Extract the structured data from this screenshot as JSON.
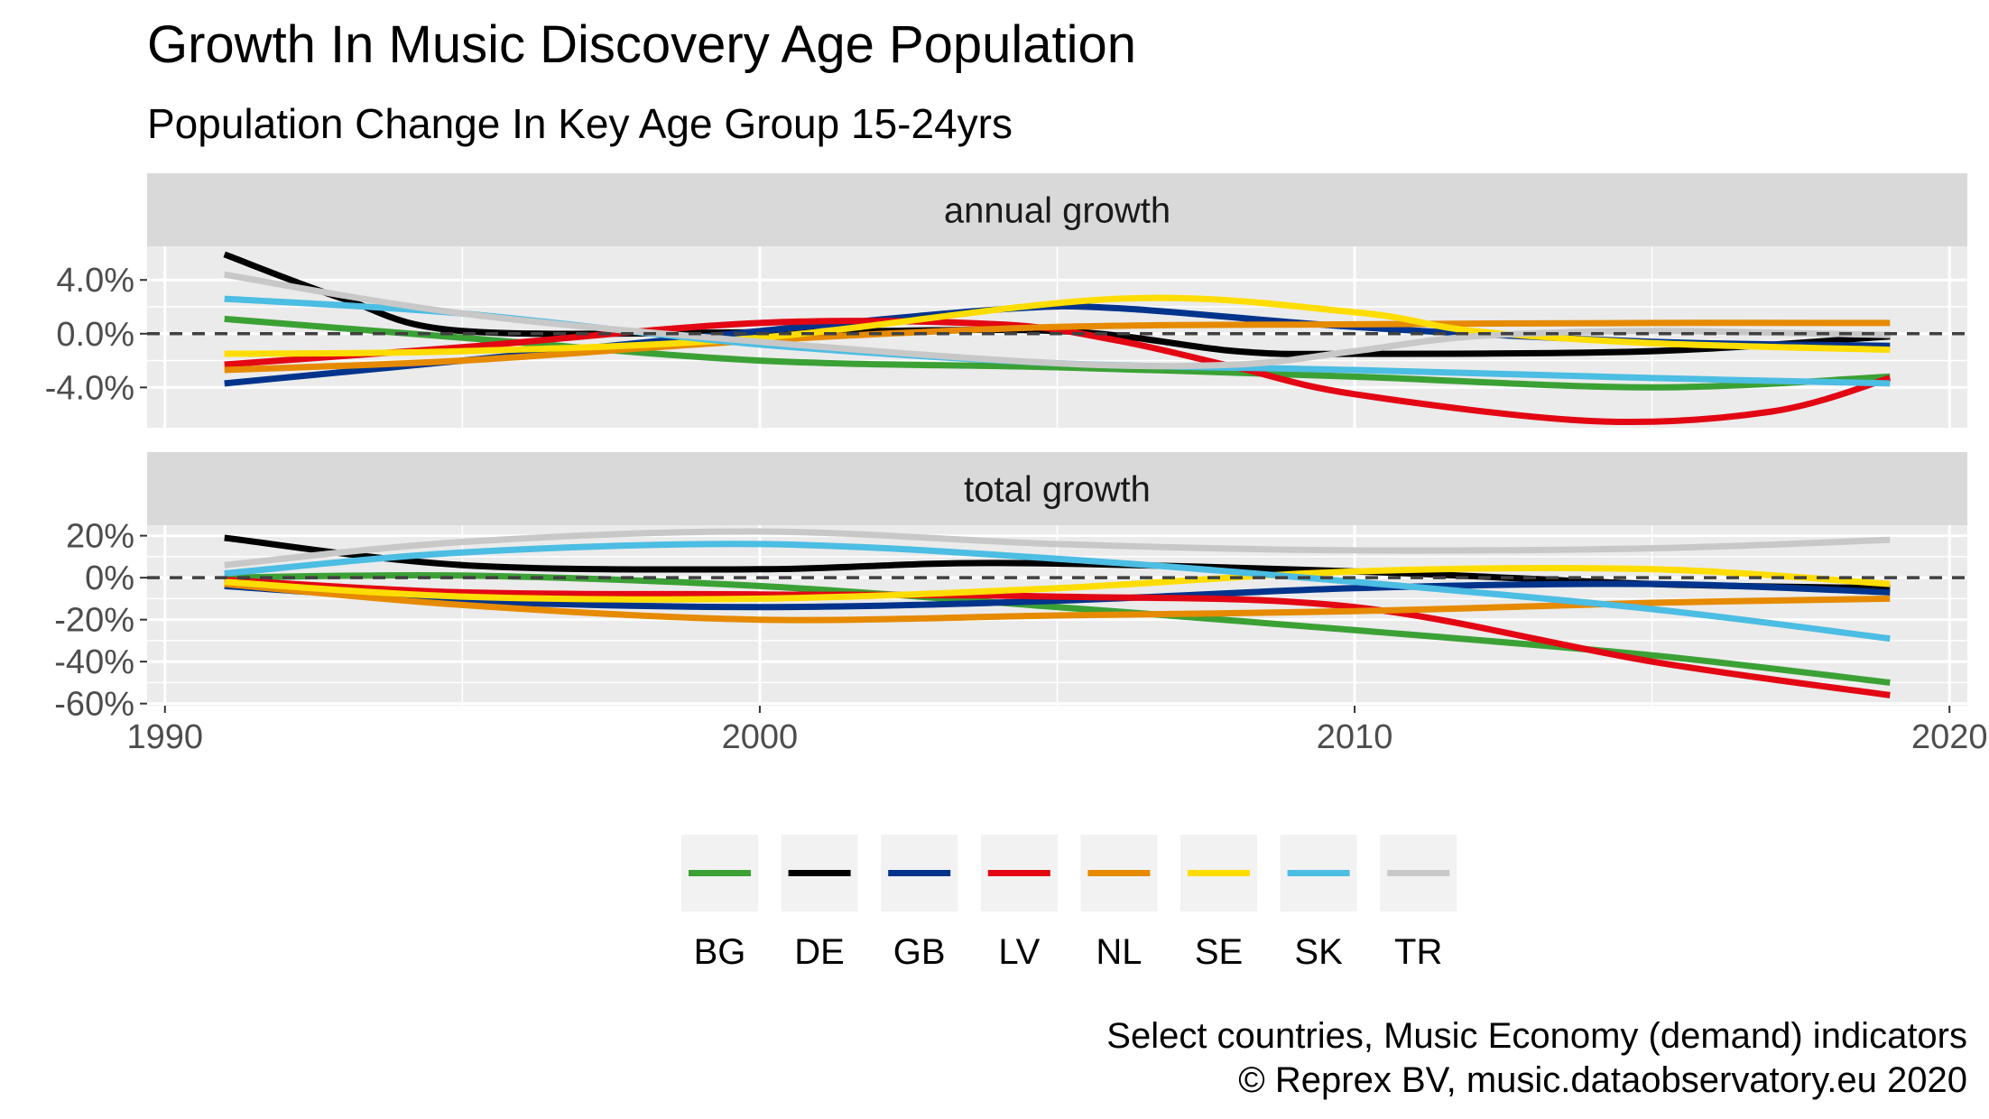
{
  "chart_data": {
    "type": "line",
    "title": "Growth In Music Discovery Age Population",
    "subtitle": "Population Change In Key Age Group 15-24yrs",
    "caption": [
      "Select countries, Music Economy (demand) indicators",
      "©  Reprex BV, music.dataobservatory.eu 2020"
    ],
    "x_ticks": [
      1990,
      2000,
      2010,
      2020
    ],
    "xlim": [
      1989.7,
      2020.3
    ],
    "legend_position": "bottom",
    "grid": true,
    "reference_line": 0,
    "panels": [
      {
        "label": "annual growth",
        "ylim": [
          -7,
          6.5
        ],
        "y_ticks": [
          4,
          0,
          -4
        ],
        "y_tick_labels": [
          "4.0%",
          "0.0%",
          "-4.0%"
        ],
        "series": [
          {
            "name": "BG",
            "color": "#3ba135",
            "x": [
              1991,
              1995,
              2000,
              2005,
              2010,
              2015,
              2019
            ],
            "values": [
              1.1,
              -0.3,
              -2.0,
              -2.5,
              -3.2,
              -4.0,
              -3.2
            ]
          },
          {
            "name": "DE",
            "color": "#000000",
            "x": [
              1991,
              1993,
              1995,
              2000,
              2005,
              2008,
              2010,
              2015,
              2019
            ],
            "values": [
              5.9,
              2.6,
              0.2,
              0.1,
              0.2,
              -1.3,
              -1.5,
              -1.3,
              -0.2
            ]
          },
          {
            "name": "GB",
            "color": "#00348c",
            "x": [
              1991,
              1995,
              2000,
              2004,
              2006,
              2010,
              2015,
              2019
            ],
            "values": [
              -3.7,
              -2.0,
              0.2,
              1.8,
              1.9,
              0.5,
              -0.6,
              -0.9
            ]
          },
          {
            "name": "LV",
            "color": "#e30613",
            "x": [
              1991,
              1995,
              2000,
              2004,
              2006,
              2008,
              2010,
              2014,
              2017,
              2019
            ],
            "values": [
              -2.3,
              -1.0,
              0.8,
              0.7,
              -0.5,
              -2.5,
              -4.5,
              -6.5,
              -5.8,
              -3.3
            ]
          },
          {
            "name": "NL",
            "color": "#e68a00",
            "x": [
              1991,
              1995,
              2000,
              2005,
              2010,
              2015,
              2019
            ],
            "values": [
              -2.7,
              -2.0,
              -0.5,
              0.5,
              0.7,
              0.8,
              0.8
            ]
          },
          {
            "name": "SE",
            "color": "#ffdd00",
            "x": [
              1991,
              1995,
              2000,
              2006,
              2010,
              2012,
              2015,
              2019
            ],
            "values": [
              -1.5,
              -1.3,
              -0.3,
              2.6,
              1.6,
              0.2,
              -0.7,
              -1.2
            ]
          },
          {
            "name": "SK",
            "color": "#4cbde3",
            "x": [
              1991,
              1995,
              2000,
              2005,
              2010,
              2015,
              2019
            ],
            "values": [
              2.6,
              1.5,
              -0.8,
              -2.2,
              -2.7,
              -3.3,
              -3.7
            ]
          },
          {
            "name": "TR",
            "color": "#c8c8c8",
            "x": [
              1991,
              1995,
              2000,
              2005,
              2008,
              2010,
              2012,
              2015,
              2019
            ],
            "values": [
              4.4,
              1.5,
              -0.6,
              -2.2,
              -2.3,
              -1.3,
              -0.2,
              0.2,
              -0.1
            ]
          }
        ]
      },
      {
        "label": "total growth",
        "ylim": [
          -61,
          25
        ],
        "y_ticks": [
          20,
          0,
          -20,
          -40,
          -60
        ],
        "y_tick_labels": [
          "20%",
          "0%",
          "-20%",
          "-40%",
          "-60%"
        ],
        "series": [
          {
            "name": "BG",
            "color": "#3ba135",
            "x": [
              1991,
              1995,
              2000,
              2005,
              2010,
              2015,
              2019
            ],
            "values": [
              0,
              1,
              -4,
              -14,
              -25,
              -37,
              -50
            ]
          },
          {
            "name": "DE",
            "color": "#000000",
            "x": [
              1991,
              1995,
              2000,
              2004,
              2010,
              2015,
              2019
            ],
            "values": [
              19,
              6,
              4,
              7,
              3,
              -3,
              -5
            ]
          },
          {
            "name": "GB",
            "color": "#00348c",
            "x": [
              1991,
              1995,
              2000,
              2005,
              2010,
              2015,
              2019
            ],
            "values": [
              -4,
              -11,
              -14,
              -11,
              -5,
              -3,
              -7
            ]
          },
          {
            "name": "LV",
            "color": "#e30613",
            "x": [
              1991,
              1995,
              2000,
              2005,
              2010,
              2015,
              2019
            ],
            "values": [
              -1,
              -7,
              -8,
              -9,
              -14,
              -40,
              -56
            ]
          },
          {
            "name": "NL",
            "color": "#e68a00",
            "x": [
              1991,
              1995,
              2000,
              2005,
              2010,
              2015,
              2019
            ],
            "values": [
              -3,
              -13,
              -20,
              -18,
              -16,
              -12,
              -10
            ]
          },
          {
            "name": "SE",
            "color": "#ffdd00",
            "x": [
              1991,
              1995,
              2000,
              2005,
              2010,
              2015,
              2019
            ],
            "values": [
              -2,
              -9,
              -10,
              -5,
              3,
              4,
              -3
            ]
          },
          {
            "name": "SK",
            "color": "#4cbde3",
            "x": [
              1991,
              1995,
              2000,
              2005,
              2010,
              2015,
              2019
            ],
            "values": [
              2,
              12,
              16,
              9,
              -2,
              -15,
              -29
            ]
          },
          {
            "name": "TR",
            "color": "#c8c8c8",
            "x": [
              1991,
              1995,
              2000,
              2005,
              2010,
              2015,
              2019
            ],
            "values": [
              6,
              17,
              22,
              16,
              13,
              14,
              18
            ]
          }
        ]
      }
    ]
  }
}
